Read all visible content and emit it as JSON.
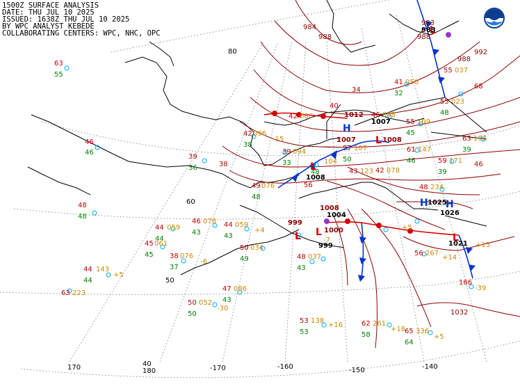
{
  "header": {
    "line1": "1500Z SURFACE ANALYSIS",
    "line2": "DATE: THU JUL 10 2025",
    "line3": "ISSUED: 1638Z THU JUL 10 2025",
    "line4": "BY WPC ANALYST KEBEDE",
    "line5": "COLLABORATING CENTERS: WPC, NHC, OPC"
  },
  "logo": {
    "name": "noaa-logo"
  },
  "graticule_labels": {
    "lat": [
      "80",
      "60",
      "50",
      "40"
    ],
    "lon": [
      "170",
      "180",
      "-170",
      "-160",
      "-150",
      "-140"
    ]
  },
  "pressure_labels": [
    "984",
    "988",
    "983",
    "988",
    "988",
    "992",
    "1012",
    "1007",
    "1008",
    "1008",
    "1004",
    "1008",
    "1000",
    "999",
    "999",
    "1025",
    "1026",
    "1021",
    "1032"
  ],
  "centers": [
    {
      "type": "H",
      "pressure": "1012"
    },
    {
      "type": "L",
      "pressure": "1007"
    },
    {
      "type": "L",
      "pressure": "1008"
    },
    {
      "type": "L",
      "pressure": "1008"
    },
    {
      "type": "L",
      "pressure": "999"
    },
    {
      "type": "L",
      "pressure": "1000"
    },
    {
      "type": "H",
      "pressure": "1025"
    },
    {
      "type": "H",
      "pressure": "1026"
    },
    {
      "type": "L",
      "pressure": "1021"
    },
    {
      "type": "L",
      "pressure": "983"
    }
  ],
  "stations": [
    {
      "t": "63",
      "d": "55",
      "p": ""
    },
    {
      "t": "46",
      "d": "46",
      "p": ""
    },
    {
      "t": "48",
      "d": "48",
      "p": ""
    },
    {
      "t": "44",
      "d": "44",
      "p": "059"
    },
    {
      "t": "45",
      "d": "45",
      "p": "061"
    },
    {
      "t": "38",
      "d": "37",
      "p": "076"
    },
    {
      "t": "44",
      "d": "44",
      "p": "143"
    },
    {
      "t": "63",
      "d": "",
      "p": "223"
    },
    {
      "t": "46",
      "d": "43",
      "p": "078"
    },
    {
      "t": "44",
      "d": "43",
      "p": "059"
    },
    {
      "t": "50",
      "d": "49",
      "p": "034"
    },
    {
      "t": "50",
      "d": "50",
      "p": "052"
    },
    {
      "t": "47",
      "d": "43",
      "p": "086"
    },
    {
      "t": "39",
      "d": "36",
      "p": ""
    },
    {
      "t": "42",
      "d": "38",
      "p": "096"
    },
    {
      "t": "49",
      "d": "48",
      "p": "076"
    },
    {
      "t": "39",
      "d": "33",
      "p": "094"
    },
    {
      "t": "42",
      "d": "",
      "p": "068"
    },
    {
      "t": "40",
      "d": "",
      "p": ""
    },
    {
      "t": "34",
      "d": "",
      "p": ""
    },
    {
      "t": "46",
      "d": "",
      "p": "098"
    },
    {
      "t": "55",
      "d": "45",
      "p": "109"
    },
    {
      "t": "57",
      "d": "50",
      "p": "107"
    },
    {
      "t": "56",
      "d": "48",
      "p": "104"
    },
    {
      "t": "43",
      "d": "",
      "p": "123"
    },
    {
      "t": "42",
      "d": "",
      "p": "078"
    },
    {
      "t": "48",
      "d": "",
      "p": "234"
    },
    {
      "t": "61",
      "d": "46",
      "p": "147"
    },
    {
      "t": "59",
      "d": "39",
      "p": "171"
    },
    {
      "t": "63",
      "d": "39",
      "p": "133"
    },
    {
      "t": "46",
      "d": "",
      "p": ""
    },
    {
      "t": "55",
      "d": "",
      "p": "037"
    },
    {
      "t": "56",
      "d": "",
      "p": "267"
    },
    {
      "t": "53",
      "d": "53",
      "p": "138"
    },
    {
      "t": "62",
      "d": "58",
      "p": "261"
    },
    {
      "t": "65",
      "d": "64",
      "p": "336"
    },
    {
      "t": "48",
      "d": "43",
      "p": "037"
    },
    {
      "t": "41",
      "d": "32",
      "p": "050"
    },
    {
      "t": "68",
      "d": "",
      "p": ""
    },
    {
      "t": "55",
      "d": "48",
      "p": "023"
    },
    {
      "t": "38",
      "d": "",
      "p": ""
    },
    {
      "t": "166",
      "d": "",
      "p": ""
    }
  ],
  "pressure_tendencies": [
    "-15",
    "+4",
    "+5",
    "-6",
    "-30",
    "+16",
    "+18",
    "+5",
    "+14",
    "-39",
    "+13",
    "-7",
    "+5"
  ]
}
